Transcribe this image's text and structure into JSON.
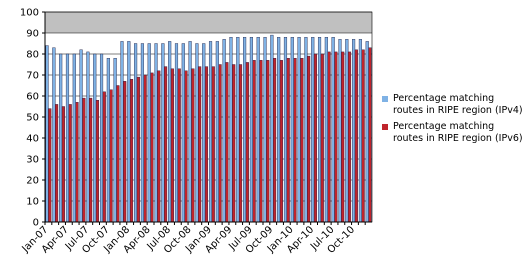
{
  "chart_data": {
    "type": "bar",
    "categories": [
      "Jan-07",
      null,
      null,
      "Apr-07",
      null,
      null,
      "Jul-07",
      null,
      null,
      "Oct-07",
      null,
      null,
      "Jan-08",
      null,
      null,
      "Apr-08",
      null,
      null,
      "Jul-08",
      null,
      null,
      "Oct-08",
      null,
      null,
      "Jan-09",
      null,
      null,
      "Apr-09",
      null,
      null,
      "Jul-09",
      null,
      null,
      "Oct-09",
      null,
      null,
      "Jan-10",
      null,
      null,
      "Apr-10",
      null,
      null,
      "Jul-10",
      null,
      null,
      "Oct-10",
      null,
      null
    ],
    "series": [
      {
        "name": "Percentage matching routes in RIPE region (IPv4)",
        "color": "#7fb2e5",
        "values": [
          84,
          83,
          80,
          80,
          80,
          82,
          81,
          80,
          80,
          78,
          78,
          86,
          86,
          85,
          85,
          85,
          85,
          85,
          86,
          85,
          85,
          86,
          85,
          85,
          86,
          86,
          87,
          88,
          88,
          88,
          88,
          88,
          88,
          89,
          88,
          88,
          88,
          88,
          88,
          88,
          88,
          88,
          88,
          87,
          87,
          87,
          87,
          86
        ]
      },
      {
        "name": "Percentage matching routes in RIPE region (IPv6)",
        "color": "#c0242c",
        "values": [
          54,
          56,
          55,
          56,
          57,
          59,
          59,
          58,
          62,
          63,
          65,
          67,
          68,
          69,
          70,
          71,
          72,
          74,
          73,
          73,
          72,
          73,
          74,
          74,
          74,
          75,
          76,
          75,
          75,
          76,
          77,
          77,
          77,
          78,
          77,
          78,
          78,
          78,
          79,
          80,
          80,
          81,
          81,
          81,
          81,
          82,
          82,
          83
        ]
      }
    ],
    "ylim": [
      0,
      100
    ],
    "yticks": [
      0,
      10,
      20,
      30,
      40,
      50,
      60,
      70,
      80,
      90,
      100
    ],
    "grid": true
  }
}
